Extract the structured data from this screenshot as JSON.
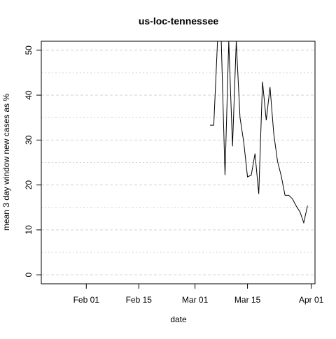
{
  "chart_data": {
    "type": "line",
    "title": "us-loc-tennessee",
    "xlabel": "date",
    "ylabel": "mean  3  day window new cases as %",
    "x_tick_labels": [
      "Feb 01",
      "Feb 15",
      "Mar 01",
      "Mar 15",
      "Apr 01"
    ],
    "y_tick_labels": [
      "0",
      "10",
      "20",
      "30",
      "40",
      "50"
    ],
    "y_ticks": [
      0,
      10,
      20,
      30,
      40,
      50
    ],
    "ylim": [
      -2,
      52
    ],
    "xlim": [
      "2020-01-20",
      "2020-04-02"
    ],
    "grid": true,
    "colors": {
      "line": "#000000",
      "grid": "#d3d3d3",
      "axis": "#000000"
    },
    "series": [
      {
        "values": [
          {
            "x": "2020-03-05",
            "y": 33.3
          },
          {
            "x": "2020-03-06",
            "y": 33.3
          },
          {
            "x": "2020-03-07",
            "y": 52
          },
          {
            "x": "2020-03-08",
            "y": 52
          },
          {
            "x": "2020-03-09",
            "y": 22.2
          },
          {
            "x": "2020-03-10",
            "y": 52
          },
          {
            "x": "2020-03-11",
            "y": 28.6
          },
          {
            "x": "2020-03-12",
            "y": 52
          },
          {
            "x": "2020-03-13",
            "y": 35
          },
          {
            "x": "2020-03-14",
            "y": 29.5
          },
          {
            "x": "2020-03-15",
            "y": 21.8
          },
          {
            "x": "2020-03-16",
            "y": 22.2
          },
          {
            "x": "2020-03-17",
            "y": 27
          },
          {
            "x": "2020-03-18",
            "y": 18
          },
          {
            "x": "2020-03-19",
            "y": 43
          },
          {
            "x": "2020-03-20",
            "y": 34.4
          },
          {
            "x": "2020-03-21",
            "y": 41.8
          },
          {
            "x": "2020-03-22",
            "y": 31.4
          },
          {
            "x": "2020-03-23",
            "y": 25.3
          },
          {
            "x": "2020-03-24",
            "y": 22
          },
          {
            "x": "2020-03-25",
            "y": 17.7
          },
          {
            "x": "2020-03-26",
            "y": 17.7
          },
          {
            "x": "2020-03-27",
            "y": 16.9
          },
          {
            "x": "2020-03-28",
            "y": 15.3
          },
          {
            "x": "2020-03-29",
            "y": 14
          },
          {
            "x": "2020-03-30",
            "y": 11.6
          },
          {
            "x": "2020-03-31",
            "y": 15.4
          }
        ]
      }
    ]
  }
}
